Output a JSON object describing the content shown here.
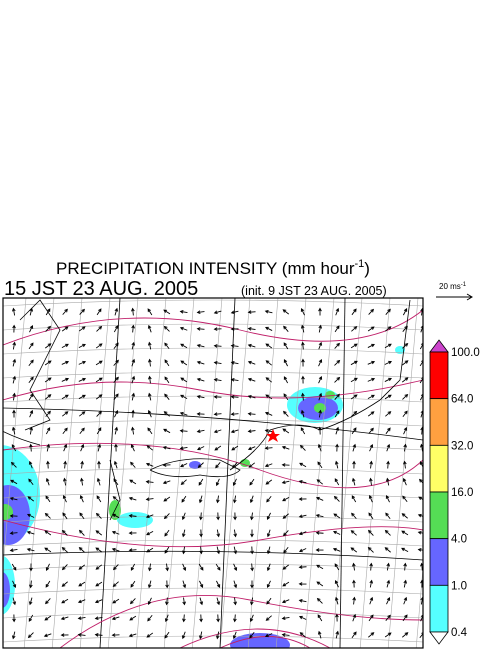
{
  "title": {
    "main": "PRECIPITATION INTENSITY (mm hour",
    "exponent": "-1",
    "close": ")"
  },
  "time": "15 JST 23 AUG. 2005",
  "init": "(init. 9 JST 23 AUG. 2005)",
  "vector_scale": {
    "label": "20 ms",
    "exponent": "-1"
  },
  "colorbar": {
    "labels": [
      "100.0",
      "64.0",
      "32.0",
      "16.0",
      "4.0",
      "1.0",
      "0.4"
    ],
    "colors": [
      "#ff0000",
      "#ffa040",
      "#ffff66",
      "#55dd55",
      "#6666ff",
      "#55ffff"
    ],
    "over_color": "#cc44cc",
    "under_color": "#ffffff"
  }
}
